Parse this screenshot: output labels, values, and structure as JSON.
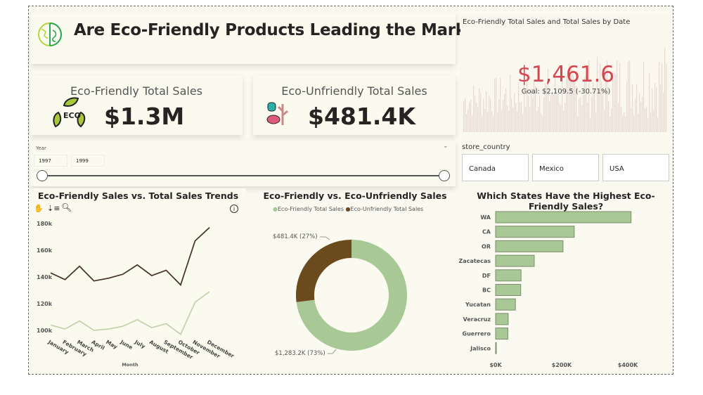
{
  "header": {
    "title": "Are Eco-Friendly Products Leading the Market?"
  },
  "kpis": [
    {
      "label": "Eco-Friendly Total Sales",
      "value": "$1.3M",
      "icon": "eco-recycle-leaves-icon"
    },
    {
      "label": "Eco-Unfriendly Total Sales",
      "value": "$481.4K",
      "icon": "pollution-icon"
    }
  ],
  "target_card": {
    "title": "Eco-Friendly Total Sales and Total Sales by Date",
    "value": "$1,461.6",
    "goal": "Goal: $2,109.5 (-30.71%)",
    "color": "#d64550"
  },
  "year_slicer": {
    "label": "Year",
    "start": "1997",
    "end": "1999",
    "position_fraction": [
      0,
      1
    ]
  },
  "country_slicer": {
    "label": "store_country",
    "options": [
      "Canada",
      "Mexico",
      "USA"
    ]
  },
  "chart_data": [
    {
      "type": "line",
      "title": "Eco-Friendly Sales vs. Total Sales Trends",
      "xlabel": "Month",
      "ylabel": "",
      "categories": [
        "January",
        "February",
        "March",
        "April",
        "May",
        "June",
        "July",
        "August",
        "September",
        "October",
        "November",
        "December"
      ],
      "yticks": [
        "100k",
        "120k",
        "140k",
        "160k",
        "180k"
      ],
      "ylim": [
        100,
        180
      ],
      "series": [
        {
          "name": "Total Sales",
          "color": "#4a3a2a",
          "values": [
            143,
            138,
            148,
            137,
            139,
            142,
            149,
            141,
            145,
            134,
            167,
            177
          ]
        },
        {
          "name": "Eco-Friendly Sales",
          "color": "#c5d4b0",
          "values": [
            104,
            101,
            107,
            100,
            101,
            103,
            108,
            102,
            105,
            97,
            121,
            129
          ]
        }
      ]
    },
    {
      "type": "pie",
      "title": "Eco-Friendly vs. Eco-Unfriendly Sales",
      "slices": [
        {
          "name": "Eco-Friendly Total Sales",
          "value": 1283.2,
          "percent": 73,
          "label": "$1,283.2K (73%)",
          "color": "#a8c895"
        },
        {
          "name": "Eco-Unfriendly Total Sales",
          "value": 481.4,
          "percent": 27,
          "label": "$481.4K (27%)",
          "color": "#6b4a1e"
        }
      ]
    },
    {
      "type": "bar",
      "title": "Which States Have the Highest Eco-Friendly Sales?",
      "xlabel": "",
      "ylabel": "",
      "categories": [
        "WA",
        "CA",
        "OR",
        "Zacatecas",
        "DF",
        "BC",
        "Yucatan",
        "Veracruz",
        "Guerrero",
        "Jalisco"
      ],
      "values": [
        410,
        238,
        204,
        117,
        77,
        76,
        60,
        38,
        37,
        2
      ],
      "xticks": [
        "$0K",
        "$200K",
        "$400K"
      ],
      "xlim": [
        0,
        400
      ],
      "color": "#a8c895"
    }
  ]
}
